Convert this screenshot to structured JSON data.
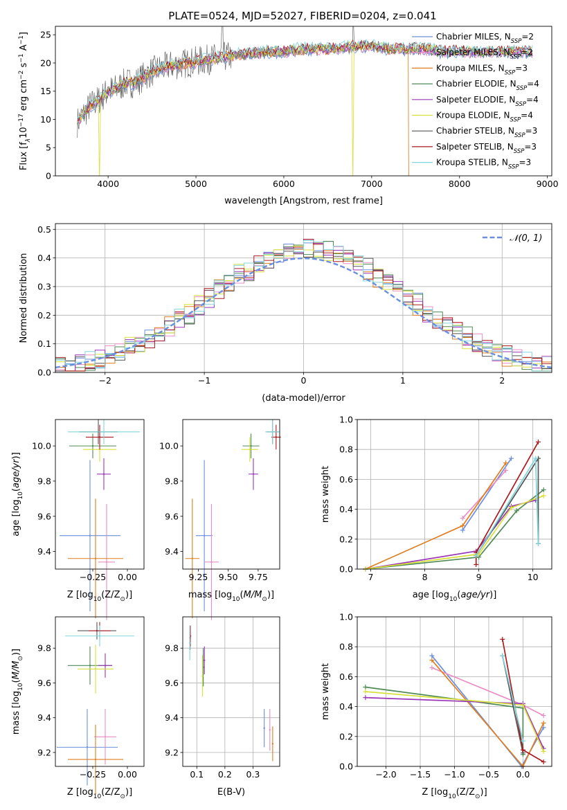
{
  "figure": {
    "title": "PLATE=0524, MJD=52027, FIBERID=0204, z=0.041"
  },
  "model_colors": {
    "Chabrier MILES": "#6a8fde",
    "Salpeter MILES": "#e98cc4",
    "Kroupa MILES": "#e07d1e",
    "Chabrier ELODIE": "#4f8a55",
    "Salpeter ELODIE": "#9a36b8",
    "Kroupa ELODIE": "#d7e03a",
    "Chabrier STELIB": "#555555",
    "Salpeter STELIB": "#ab1a1e",
    "Kroupa STELIB": "#7fd6dc"
  },
  "chart_data": [
    {
      "id": "spectrum",
      "type": "line",
      "title": "PLATE=0524, MJD=52027, FIBERID=0204, z=0.041",
      "xlabel": "wavelength [Angstrom, rest frame]",
      "ylabel_parts": [
        "Flux [f",
        "λ",
        "10",
        "−17",
        " erg cm",
        "−2",
        " s",
        "−1",
        " A",
        "−1",
        "]"
      ],
      "xlim": [
        3400,
        9050
      ],
      "ylim": [
        0,
        26.5
      ],
      "xticks": [
        4000,
        5000,
        6000,
        7000,
        8000,
        9000
      ],
      "yticks": [
        0,
        5,
        10,
        15,
        20,
        25
      ],
      "continuum": {
        "x": [
          3650,
          3700,
          3800,
          3900,
          4000,
          4100,
          4200,
          4300,
          4400,
          4500,
          4700,
          4900,
          5100,
          5300,
          5500,
          5800,
          6000,
          6200,
          6400,
          6600,
          6800,
          7000,
          7200,
          7400,
          7600,
          7800,
          8000,
          8200,
          8400,
          8600,
          8800
        ],
        "y": [
          9.5,
          10.5,
          12.5,
          13.5,
          15,
          15.5,
          16.5,
          16.5,
          17.5,
          18.5,
          19.5,
          20,
          20.5,
          21,
          21.5,
          22,
          22,
          22.5,
          22.5,
          22.5,
          23,
          23,
          22.5,
          22.5,
          22.5,
          22,
          22,
          22,
          22,
          22,
          22
        ]
      },
      "legend": [
        {
          "name": "Chabrier MILES",
          "nssp": "2"
        },
        {
          "name": "Salpeter MILES",
          "nssp": "2"
        },
        {
          "name": "Kroupa MILES",
          "nssp": "3"
        },
        {
          "name": "Chabrier ELODIE",
          "nssp": "4"
        },
        {
          "name": "Salpeter ELODIE",
          "nssp": "4"
        },
        {
          "name": "Kroupa ELODIE",
          "nssp": "4"
        },
        {
          "name": "Chabrier STELIB",
          "nssp": "3"
        },
        {
          "name": "Salpeter STELIB",
          "nssp": "3"
        },
        {
          "name": "Kroupa STELIB",
          "nssp": "3"
        }
      ]
    },
    {
      "id": "residuals",
      "type": "line",
      "xlabel": "(data-model)/error",
      "ylabel": "Normed distribution",
      "xlim": [
        -2.5,
        2.5
      ],
      "ylim": [
        0,
        0.52
      ],
      "xticks": [
        -2,
        -1,
        0,
        1,
        2
      ],
      "yticks": [
        0.0,
        0.1,
        0.2,
        0.3,
        0.4,
        0.5
      ],
      "grid": true,
      "legend": "N(0,1)",
      "histogram_bin_width": 0.1
    },
    {
      "id": "age_vs_Z",
      "type": "scatter",
      "xlabel": "Z [log10(Z/Z⊙)]",
      "ylabel": "age  [log10(age/yr)]",
      "xlim": [
        -0.52,
        0.12
      ],
      "ylim": [
        9.3,
        10.15
      ],
      "xticks": [
        -0.25,
        0.0
      ],
      "yticks": [
        9.4,
        9.6,
        9.8,
        10.0
      ],
      "points": [
        {
          "model": "Chabrier MILES",
          "x": -0.27,
          "y": 9.49,
          "xerr": 0.22,
          "yerr": 0.43
        },
        {
          "model": "Salpeter MILES",
          "x": -0.15,
          "y": 9.34,
          "xerr": 0.06,
          "yerr": 0.33
        },
        {
          "model": "Kroupa MILES",
          "x": -0.23,
          "y": 9.36,
          "xerr": 0.2,
          "yerr": 0.34
        },
        {
          "model": "Chabrier ELODIE",
          "x": -0.25,
          "y": 10.0,
          "xerr": 0.17,
          "yerr": 0.07
        },
        {
          "model": "Salpeter ELODIE",
          "x": -0.17,
          "y": 9.84,
          "xerr": 0.05,
          "yerr": 0.09
        },
        {
          "model": "Kroupa ELODIE",
          "x": -0.2,
          "y": 9.98,
          "xerr": 0.12,
          "yerr": 0.07
        },
        {
          "model": "Chabrier STELIB",
          "x": -0.21,
          "y": 10.08,
          "xerr": 0.14,
          "yerr": 0.07
        },
        {
          "model": "Salpeter STELIB",
          "x": -0.2,
          "y": 10.05,
          "xerr": 0.1,
          "yerr": 0.07
        },
        {
          "model": "Kroupa STELIB",
          "x": -0.17,
          "y": 10.08,
          "xerr": 0.26,
          "yerr": 0.07
        }
      ]
    },
    {
      "id": "age_vs_mass",
      "type": "scatter",
      "xlabel": "mass [log10(M/M⊙)]",
      "ylabel": "",
      "xlim": [
        9.12,
        9.93
      ],
      "ylim": [
        9.3,
        10.15
      ],
      "xticks": [
        9.25,
        9.5,
        9.75
      ],
      "yticks": [
        9.4,
        9.6,
        9.8,
        10.0
      ],
      "points": [
        {
          "model": "Chabrier MILES",
          "x": 9.3,
          "y": 9.49,
          "xerr": 0.07,
          "yerr": 0.43
        },
        {
          "model": "Salpeter MILES",
          "x": 9.36,
          "y": 9.34,
          "xerr": 0.06,
          "yerr": 0.33
        },
        {
          "model": "Kroupa MILES",
          "x": 9.2,
          "y": 9.36,
          "xerr": 0.06,
          "yerr": 0.34
        },
        {
          "model": "Chabrier ELODIE",
          "x": 9.69,
          "y": 10.0,
          "xerr": 0.07,
          "yerr": 0.07
        },
        {
          "model": "Salpeter ELODIE",
          "x": 9.71,
          "y": 9.84,
          "xerr": 0.04,
          "yerr": 0.09
        },
        {
          "model": "Kroupa ELODIE",
          "x": 9.68,
          "y": 9.98,
          "xerr": 0.07,
          "yerr": 0.07
        },
        {
          "model": "Chabrier STELIB",
          "x": 9.87,
          "y": 10.08,
          "xerr": 0.05,
          "yerr": 0.07
        },
        {
          "model": "Salpeter STELIB",
          "x": 9.9,
          "y": 10.05,
          "xerr": 0.04,
          "yerr": 0.07
        },
        {
          "model": "Kroupa STELIB",
          "x": 9.87,
          "y": 10.08,
          "xerr": 0.06,
          "yerr": 0.07
        }
      ]
    },
    {
      "id": "weight_vs_age",
      "type": "line",
      "xlabel": "age  [log10(age/yr)]",
      "ylabel": "mass weight",
      "xlim": [
        6.75,
        10.35
      ],
      "ylim": [
        0,
        1.0
      ],
      "xticks": [
        7,
        8,
        9,
        10
      ],
      "yticks": [
        0.0,
        0.2,
        0.4,
        0.6,
        0.8,
        1.0
      ],
      "grid": true,
      "series": [
        {
          "model": "Chabrier MILES",
          "x": [
            8.7,
            9.6
          ],
          "y": [
            0.26,
            0.74
          ]
        },
        {
          "model": "Salpeter MILES",
          "x": [
            8.7,
            9.5
          ],
          "y": [
            0.34,
            0.66
          ]
        },
        {
          "model": "Kroupa MILES",
          "x": [
            6.9,
            8.7,
            9.5
          ],
          "y": [
            0.0,
            0.29,
            0.71
          ]
        },
        {
          "model": "Chabrier ELODIE",
          "x": [
            6.9,
            9.0,
            9.7,
            10.2
          ],
          "y": [
            0.0,
            0.08,
            0.39,
            0.53
          ]
        },
        {
          "model": "Salpeter ELODIE",
          "x": [
            6.9,
            8.95,
            9.6,
            10.05
          ],
          "y": [
            0.0,
            0.12,
            0.42,
            0.46
          ]
        },
        {
          "model": "Kroupa ELODIE",
          "x": [
            6.9,
            9.0,
            9.6,
            10.2
          ],
          "y": [
            0.0,
            0.1,
            0.41,
            0.49
          ]
        },
        {
          "model": "Chabrier STELIB",
          "x": [
            8.95,
            10.1,
            10.1
          ],
          "y": [
            0.09,
            0.74,
            0.17
          ]
        },
        {
          "model": "Salpeter STELIB",
          "x": [
            8.95,
            8.95,
            10.1
          ],
          "y": [
            0.03,
            0.11,
            0.85
          ]
        },
        {
          "model": "Kroupa STELIB",
          "x": [
            8.95,
            10.05,
            10.1
          ],
          "y": [
            0.09,
            0.74,
            0.17
          ]
        }
      ]
    },
    {
      "id": "mass_vs_Z",
      "type": "scatter",
      "xlabel": "Z [log10(Z/Z⊙)]",
      "ylabel": "mass [log10(M/M⊙)]",
      "xlim": [
        -0.52,
        0.12
      ],
      "ylim": [
        9.12,
        9.98
      ],
      "xticks": [
        -0.25,
        0.0
      ],
      "yticks": [
        9.2,
        9.4,
        9.6,
        9.8
      ],
      "points": [
        {
          "model": "Chabrier MILES",
          "x": -0.29,
          "y": 9.23,
          "xerr": 0.22,
          "yerr": 0.22
        },
        {
          "model": "Salpeter MILES",
          "x": -0.16,
          "y": 9.29,
          "xerr": 0.08,
          "yerr": 0.16
        },
        {
          "model": "Kroupa MILES",
          "x": -0.23,
          "y": 9.16,
          "xerr": 0.2,
          "yerr": 0.2
        },
        {
          "model": "Chabrier ELODIE",
          "x": -0.27,
          "y": 9.7,
          "xerr": 0.16,
          "yerr": 0.11
        },
        {
          "model": "Salpeter ELODIE",
          "x": -0.16,
          "y": 9.7,
          "xerr": 0.05,
          "yerr": 0.07
        },
        {
          "model": "Kroupa ELODIE",
          "x": -0.23,
          "y": 9.68,
          "xerr": 0.13,
          "yerr": 0.14
        },
        {
          "model": "Chabrier STELIB",
          "x": -0.22,
          "y": 9.9,
          "xerr": 0.14,
          "yerr": 0.05
        },
        {
          "model": "Salpeter STELIB",
          "x": -0.2,
          "y": 9.9,
          "xerr": 0.08,
          "yerr": 0.05
        },
        {
          "model": "Kroupa STELIB",
          "x": -0.2,
          "y": 9.87,
          "xerr": 0.25,
          "yerr": 0.06
        }
      ]
    },
    {
      "id": "mass_vs_ebv",
      "type": "scatter",
      "xlabel": "E(B-V)",
      "ylabel": "",
      "xlim": [
        0.05,
        0.395
      ],
      "ylim": [
        9.12,
        9.98
      ],
      "xticks": [
        0.1,
        0.2,
        0.3
      ],
      "yticks": [
        9.2,
        9.4,
        9.6,
        9.8
      ],
      "grid": true,
      "points": [
        {
          "model": "Chabrier MILES",
          "x": 0.34,
          "y": 9.34,
          "yerr": 0.11
        },
        {
          "model": "Salpeter MILES",
          "x": 0.36,
          "y": 9.33,
          "yerr": 0.12
        },
        {
          "model": "Kroupa MILES",
          "x": 0.37,
          "y": 9.25,
          "yerr": 0.1
        },
        {
          "model": "Chabrier ELODIE",
          "x": 0.123,
          "y": 9.69,
          "yerr": 0.11
        },
        {
          "model": "Salpeter ELODIE",
          "x": 0.127,
          "y": 9.73,
          "yerr": 0.08
        },
        {
          "model": "Kroupa ELODIE",
          "x": 0.12,
          "y": 9.64,
          "yerr": 0.12
        },
        {
          "model": "Chabrier STELIB",
          "x": 0.076,
          "y": 9.86,
          "yerr": 0.07
        },
        {
          "model": "Salpeter STELIB",
          "x": 0.077,
          "y": 9.87,
          "yerr": 0.06
        },
        {
          "model": "Kroupa STELIB",
          "x": 0.075,
          "y": 9.83,
          "yerr": 0.1
        }
      ]
    },
    {
      "id": "weight_vs_Z",
      "type": "line",
      "xlabel": "Z [log10(Z/Z⊙)]",
      "ylabel": "mass weight",
      "xlim": [
        -2.42,
        0.42
      ],
      "ylim": [
        0,
        1.0
      ],
      "xticks": [
        -2.0,
        -1.5,
        -1.0,
        -0.5,
        0.0
      ],
      "yticks": [
        0.0,
        0.2,
        0.4,
        0.6,
        0.8,
        1.0
      ],
      "grid": true,
      "series": [
        {
          "model": "Chabrier MILES",
          "x": [
            -1.33,
            -0.02,
            0.3
          ],
          "y": [
            0.74,
            0.0,
            0.26
          ]
        },
        {
          "model": "Salpeter MILES",
          "x": [
            -1.33,
            0.0,
            0.3
          ],
          "y": [
            0.66,
            0.41,
            0.34
          ]
        },
        {
          "model": "Kroupa MILES",
          "x": [
            -1.33,
            0.0,
            0.3
          ],
          "y": [
            0.71,
            0.0,
            0.29
          ]
        },
        {
          "model": "Chabrier ELODIE",
          "x": [
            -2.3,
            0.0,
            0.0
          ],
          "y": [
            0.53,
            0.39,
            0.08
          ]
        },
        {
          "model": "Salpeter ELODIE",
          "x": [
            -2.3,
            0.0,
            0.3
          ],
          "y": [
            0.46,
            0.42,
            0.12
          ]
        },
        {
          "model": "Kroupa ELODIE",
          "x": [
            -2.3,
            0.0,
            0.3
          ],
          "y": [
            0.5,
            0.41,
            0.1
          ]
        },
        {
          "model": "Chabrier STELIB",
          "x": [
            -0.3,
            0.0
          ],
          "y": [
            0.74,
            0.09
          ]
        },
        {
          "model": "Salpeter STELIB",
          "x": [
            -0.3,
            0.0,
            0.3
          ],
          "y": [
            0.85,
            0.11,
            0.03
          ]
        },
        {
          "model": "Kroupa STELIB",
          "x": [
            -0.3,
            0.0
          ],
          "y": [
            0.74,
            0.17
          ]
        }
      ]
    }
  ]
}
